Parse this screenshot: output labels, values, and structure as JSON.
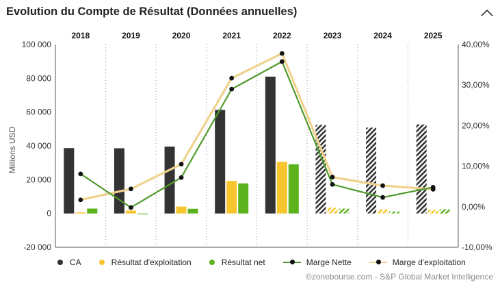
{
  "header": {
    "title": "Evolution du Compte de Résultat (Données annuelles)",
    "collapse_icon": "chevron-up-icon"
  },
  "footer": {
    "source": "©zonebourse.com - S&P Global Market Intelligence"
  },
  "colors": {
    "ca": "#333333",
    "resultat_exploitation": "#f7c62f",
    "resultat_net": "#5cb31e",
    "marge_nette": "#4f9a2b",
    "marge_exploitation": "#efd28c"
  },
  "legend": [
    {
      "label": "CA",
      "kind": "dot",
      "color": "#333333"
    },
    {
      "label": "Résultat d'exploitation",
      "kind": "dot",
      "color": "#f7c62f"
    },
    {
      "label": "Résultat net",
      "kind": "dot",
      "color": "#5cb31e"
    },
    {
      "label": "Marge Nette",
      "kind": "line",
      "color": "#4f9a2b"
    },
    {
      "label": "Marge d'exploitation",
      "kind": "line",
      "color": "#efd28c"
    }
  ],
  "chart_data": {
    "type": "bar",
    "title": "Evolution du Compte de Résultat (Données annuelles)",
    "categories": [
      "2018",
      "2019",
      "2020",
      "2021",
      "2022",
      "2023",
      "2024",
      "2025"
    ],
    "forecast_from": "2023",
    "ylabel": "Millions USD",
    "ylim": [
      -20000,
      100000
    ],
    "yticks": [
      -20000,
      0,
      20000,
      40000,
      60000,
      80000,
      100000
    ],
    "ytick_labels": [
      "-20 000",
      "0",
      "20 000",
      "40 000",
      "60 000",
      "80 000",
      "100 000"
    ],
    "y2lim": [
      -10,
      40
    ],
    "y2ticks": [
      -10,
      0,
      10,
      20,
      30,
      40
    ],
    "y2tick_labels": [
      "-10,00%",
      "0,00%",
      "10,00%",
      "20,00%",
      "30,00%",
      "40,00%"
    ],
    "legend_position": "bottom",
    "bar_series": [
      {
        "name": "CA",
        "values": [
          38700,
          38600,
          39600,
          61300,
          81000,
          52400,
          50800,
          52700
        ]
      },
      {
        "name": "Résultat d'exploitation",
        "values": [
          600,
          1700,
          4100,
          19300,
          30600,
          3500,
          2400,
          2100
        ]
      },
      {
        "name": "Résultat net",
        "values": [
          2900,
          -300,
          2800,
          17800,
          29100,
          2900,
          1200,
          2500
        ]
      }
    ],
    "line_series": [
      {
        "name": "Marge Nette",
        "axis": "right",
        "values": [
          8.1,
          -0.2,
          7.2,
          29.0,
          35.8,
          5.5,
          2.3,
          4.8
        ]
      },
      {
        "name": "Marge d'exploitation",
        "axis": "right",
        "values": [
          1.7,
          4.4,
          10.5,
          31.7,
          37.8,
          7.3,
          5.2,
          4.3
        ]
      }
    ]
  }
}
